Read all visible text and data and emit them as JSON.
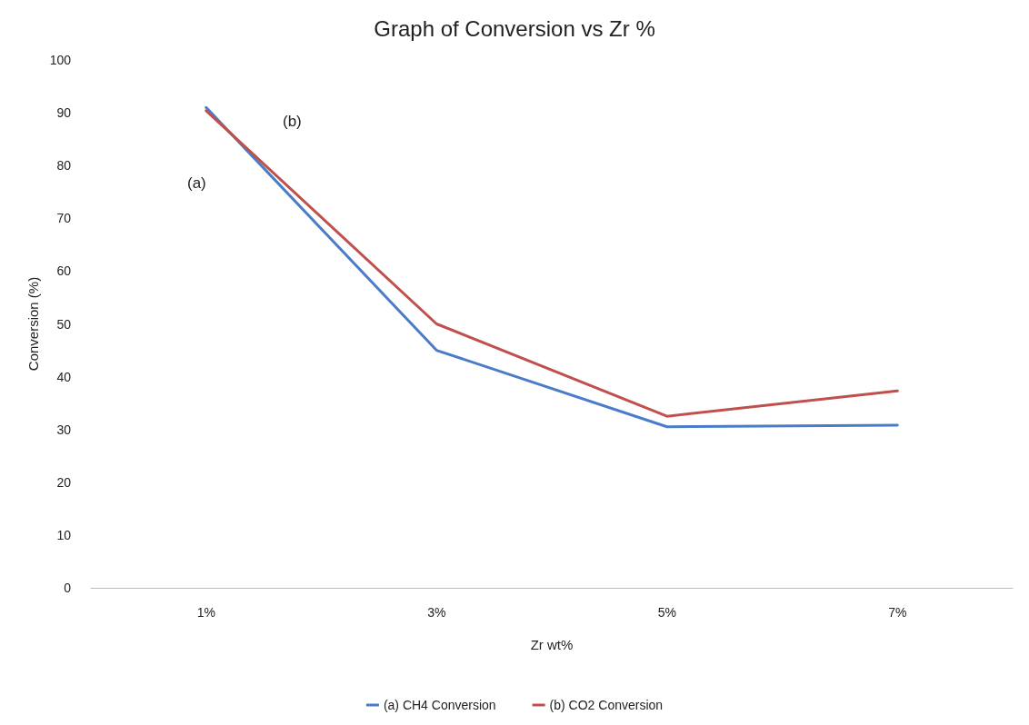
{
  "chart_data": {
    "type": "line",
    "title": "Graph of Conversion vs Zr %",
    "xlabel": "Zr wt%",
    "ylabel": "Conversion (%)",
    "categories": [
      "1%",
      "3%",
      "5%",
      "7%"
    ],
    "series": [
      {
        "name": "(a) CH4 Conversion",
        "color": "#4a7cc7",
        "values": [
          91,
          45,
          30.5,
          30.8
        ]
      },
      {
        "name": "(b) CO2 Conversion",
        "color": "#c0504d",
        "values": [
          90.4,
          50,
          32.5,
          37.3
        ]
      }
    ],
    "annotations": [
      "(a)",
      "(b)"
    ],
    "ylim": [
      0,
      100
    ],
    "yticks": [
      0,
      10,
      20,
      30,
      40,
      50,
      60,
      70,
      80,
      90,
      100
    ],
    "grid": false,
    "legend": "bottom",
    "marker": "none",
    "line_style": "solid"
  }
}
